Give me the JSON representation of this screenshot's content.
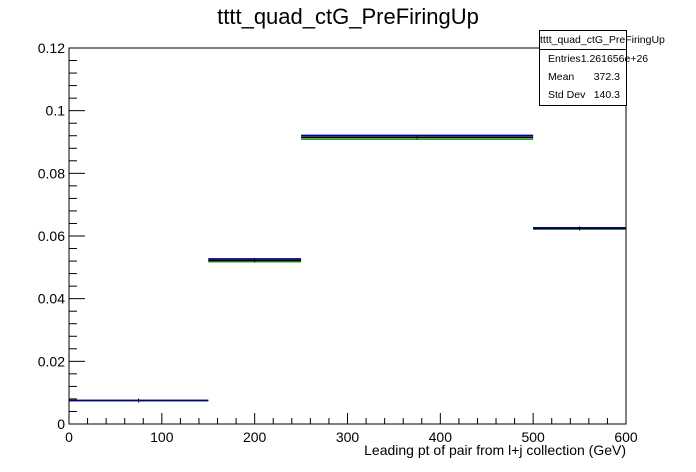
{
  "chart_data": {
    "type": "step-histogram",
    "title": "tttt_quad_ctG_PreFiringUp",
    "xlabel": "Leading pt of pair from l+j collection (GeV)",
    "ylabel": "",
    "xlim": [
      0,
      600
    ],
    "ylim": [
      0,
      0.12
    ],
    "x_ticks": [
      "0",
      "100",
      "200",
      "300",
      "400",
      "500",
      "600"
    ],
    "y_ticks": [
      "0",
      "0.02",
      "0.04",
      "0.06",
      "0.08",
      "0.1",
      "0.12"
    ],
    "bins": [
      {
        "x0": 0,
        "x1": 150,
        "value": 0.0075
      },
      {
        "x0": 150,
        "x1": 250,
        "value": 0.0522
      },
      {
        "x0": 250,
        "x1": 500,
        "value": 0.0915
      },
      {
        "x0": 500,
        "x1": 600,
        "value": 0.0624
      }
    ],
    "series": [
      {
        "color": "#000000",
        "values": [
          0.0075,
          0.0522,
          0.0915,
          0.0624
        ]
      },
      {
        "color": "#00008b",
        "values": [
          0.0075,
          0.0527,
          0.0921,
          0.0626
        ]
      },
      {
        "color": "#2ca02c",
        "values": [
          0.0075,
          0.0518,
          0.0909,
          0.0622
        ]
      }
    ],
    "stats": {
      "name": "tttt_quad_ctG_PreFiringUp",
      "rows": [
        {
          "label": "Entries",
          "value": "1.261656e+26"
        },
        {
          "label": "Mean",
          "value": "372.3"
        },
        {
          "label": "Std Dev",
          "value": "140.3"
        }
      ]
    },
    "grid": false,
    "legend": "top-right"
  }
}
